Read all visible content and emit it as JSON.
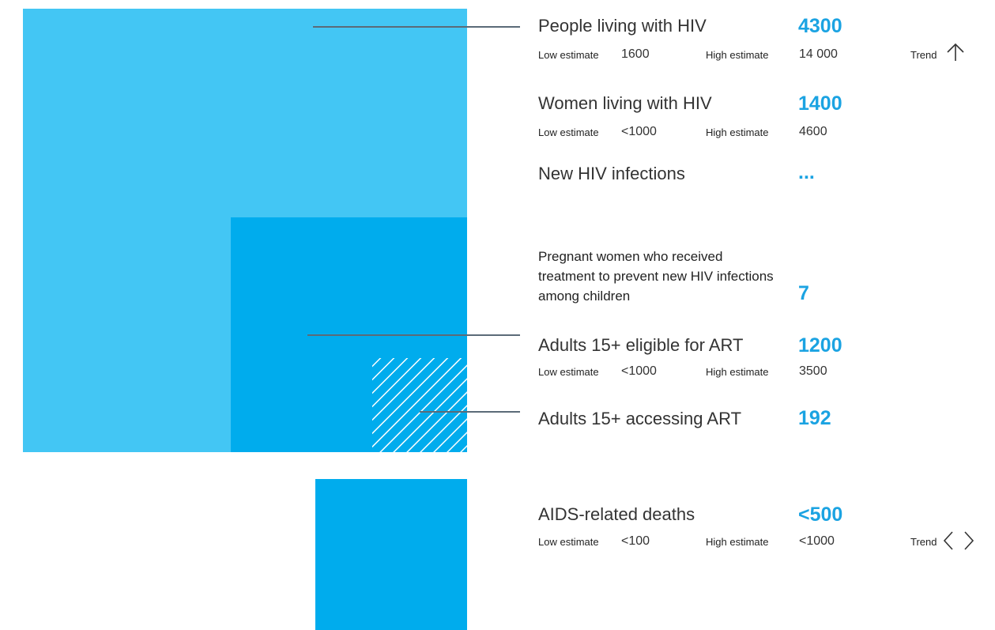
{
  "colors": {
    "light_blue": "#43c6f4",
    "mid_blue": "#00aced",
    "value_blue": "#1ba3e2",
    "leader_line": "#5b6b78",
    "hatch": "#ffffff"
  },
  "labels": {
    "low": "Low estimate",
    "high": "High estimate",
    "trend": "Trend"
  },
  "indicators": {
    "plhiv": {
      "label": "People living with HIV",
      "value": "4300",
      "low": "1600",
      "high": "14 000",
      "trend_icon": "arrow-up-icon"
    },
    "women": {
      "label": "Women living with HIV",
      "value": "1400",
      "low": "<1000",
      "high": "4600"
    },
    "new_infections": {
      "label": "New HIV infections",
      "value": "..."
    },
    "pmtct": {
      "label": "Pregnant women who received treatment to prevent new HIV infections among children",
      "value": "7"
    },
    "eligible": {
      "label": "Adults 15+ eligible for ART",
      "value": "1200",
      "low": "<1000",
      "high": "3500"
    },
    "accessing": {
      "label": "Adults 15+ accessing ART",
      "value": "192"
    },
    "deaths": {
      "label": "AIDS-related deaths",
      "value": "<500",
      "low": "<100",
      "high": "<1000",
      "trend_icon": "arrows-left-right-icon"
    }
  },
  "chart_data": {
    "type": "area",
    "title": "",
    "series": [
      {
        "name": "People living with HIV",
        "values": [
          4300
        ]
      },
      {
        "name": "Adults 15+ eligible for ART",
        "values": [
          1200
        ]
      },
      {
        "name": "Adults 15+ accessing ART",
        "values": [
          192
        ]
      },
      {
        "name": "AIDS-related deaths",
        "values": [
          500
        ]
      }
    ]
  }
}
